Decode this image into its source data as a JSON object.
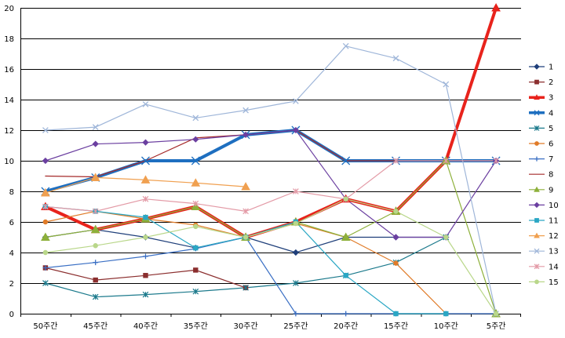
{
  "chart_data": {
    "type": "line",
    "title": "",
    "xlabel": "",
    "ylabel": "",
    "ylim": [
      0,
      20
    ],
    "yticks": [
      0,
      2,
      4,
      6,
      8,
      10,
      12,
      14,
      16,
      18,
      20
    ],
    "grid": true,
    "legend_position": "right",
    "categories": [
      "50주간",
      "45주간",
      "40주간",
      "35주간",
      "30주간",
      "25주간",
      "20주간",
      "15주간",
      "10주간",
      "5주간"
    ],
    "series": [
      {
        "name": "1",
        "color": "#1F3F7A",
        "width": 1.2,
        "marker": "diamond",
        "values": [
          5,
          5.5,
          5,
          4.3,
          5,
          4,
          5,
          5,
          5,
          null
        ]
      },
      {
        "name": "2",
        "color": "#8B2E2E",
        "width": 1.2,
        "marker": "square",
        "values": [
          3,
          2.2,
          2.5,
          2.85,
          1.7,
          null,
          null,
          null,
          null,
          null
        ]
      },
      {
        "name": "3",
        "color": "#E8231C",
        "width": 4,
        "marker": "triangle",
        "values": [
          7,
          5.5,
          6.2,
          7,
          5,
          6,
          7.5,
          6.7,
          10,
          20
        ]
      },
      {
        "name": "4",
        "color": "#1E6FC0",
        "width": 4,
        "marker": "x",
        "values": [
          8,
          8.9,
          10,
          10,
          11.7,
          12,
          10,
          10,
          10,
          10
        ]
      },
      {
        "name": "5",
        "color": "#1C7A8C",
        "width": 1.2,
        "marker": "asterisk",
        "values": [
          2,
          1.1,
          1.25,
          1.45,
          1.7,
          2,
          2.5,
          3.35,
          5,
          null
        ]
      },
      {
        "name": "6",
        "color": "#E07B28",
        "width": 1.2,
        "marker": "circle",
        "values": [
          6,
          6.7,
          6.2,
          5.8,
          5,
          5.9,
          5,
          3.3,
          0,
          null
        ]
      },
      {
        "name": "7",
        "color": "#3A6FC4",
        "width": 1.2,
        "marker": "plus",
        "values": [
          3,
          3.35,
          3.75,
          4.25,
          5,
          0,
          0,
          0,
          0,
          0
        ]
      },
      {
        "name": "8",
        "color": "#A52A2A",
        "width": 1.2,
        "marker": "none",
        "values": [
          9,
          8.95,
          10,
          11.5,
          11.7,
          12,
          10,
          10,
          10,
          10
        ]
      },
      {
        "name": "9",
        "color": "#8DB03A",
        "width": 1.2,
        "marker": "triangle",
        "values": [
          5,
          5.5,
          6.2,
          7,
          5,
          6,
          5,
          6.7,
          10,
          0
        ]
      },
      {
        "name": "10",
        "color": "#6B3FA0",
        "width": 1.2,
        "marker": "diamond",
        "values": [
          10,
          11.1,
          11.2,
          11.4,
          11.7,
          12,
          7.5,
          5,
          5,
          10
        ]
      },
      {
        "name": "11",
        "color": "#2AA7C4",
        "width": 1.2,
        "marker": "square",
        "values": [
          7,
          6.7,
          6.3,
          4.3,
          5,
          6,
          2.5,
          0,
          0,
          null
        ]
      },
      {
        "name": "12",
        "color": "#F0A050",
        "width": 1.2,
        "marker": "triangle",
        "values": [
          7.9,
          8.9,
          8.75,
          8.55,
          8.3,
          null,
          null,
          null,
          null,
          null
        ]
      },
      {
        "name": "13",
        "color": "#9FB6D9",
        "width": 1.2,
        "marker": "x",
        "values": [
          12,
          12.2,
          13.7,
          12.8,
          13.3,
          13.9,
          17.5,
          16.7,
          15,
          0
        ]
      },
      {
        "name": "14",
        "color": "#E39AA6",
        "width": 1.2,
        "marker": "asterisk",
        "values": [
          7,
          6.7,
          7.5,
          7.2,
          6.7,
          8,
          7.5,
          10,
          10,
          10
        ]
      },
      {
        "name": "15",
        "color": "#B9D78A",
        "width": 1.2,
        "marker": "circle",
        "values": [
          4,
          4.45,
          5,
          5.7,
          5,
          5.9,
          7.5,
          6.7,
          5,
          0
        ]
      }
    ]
  }
}
